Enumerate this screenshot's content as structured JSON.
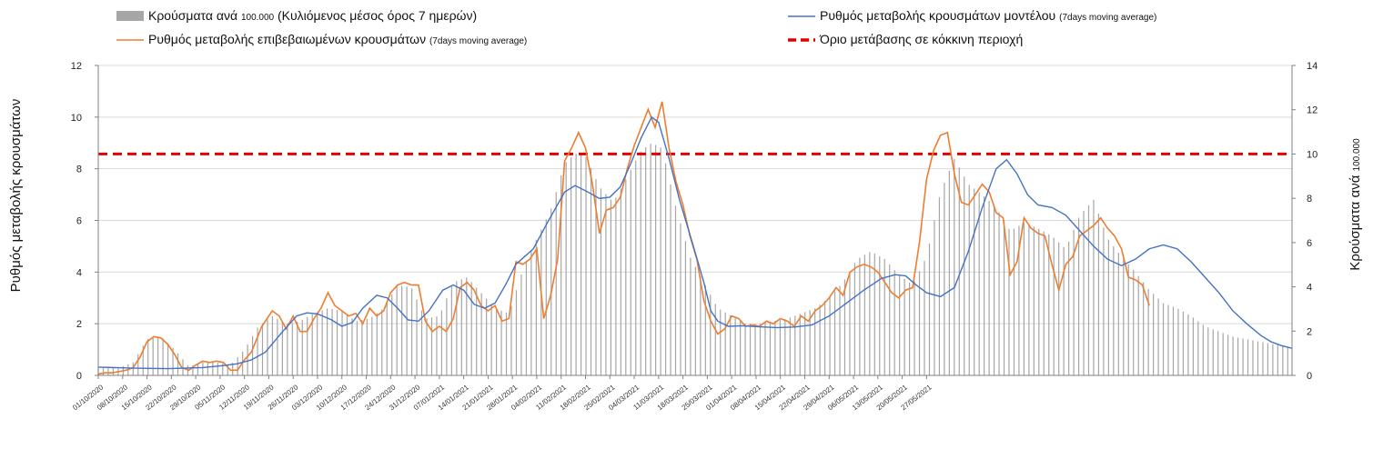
{
  "chart_data": {
    "type": "bar+line",
    "legend": {
      "bars": {
        "label": "Κρούσματα ανά",
        "label_small": "100.000",
        "label_rest": "(Κυλιόμενος μέσος όρος 7 ημερών)"
      },
      "model": {
        "label": "Ρυθμός μεταβολής κρουσμάτων μοντέλου",
        "label_small": "(7days moving average)"
      },
      "confirmed": {
        "label": "Ρυθμός μεταβολής επιβεβαιωμένων κρουσμάτων",
        "label_small": "(7days moving average)"
      },
      "threshold": {
        "label": "Όριο μετάβασης σε κόκκινη περιοχή"
      }
    },
    "ylabel_left": "Ρυθμός μεταβολής κρουσμάτων",
    "ylabel_right": "Κρούσματα ανά",
    "ylabel_right_small": "100.000",
    "ylim_left": [
      0,
      12
    ],
    "ylim_right": [
      0,
      14
    ],
    "yticks_left": [
      "0",
      "2",
      "4",
      "6",
      "8",
      "10",
      "12"
    ],
    "yticks_right": [
      "0",
      "2",
      "4",
      "6",
      "8",
      "10",
      "12",
      "14"
    ],
    "threshold_right_value": 10,
    "n_days": 240,
    "x_tick_labels": [
      "01/10/2020",
      "08/10/2020",
      "15/10/2020",
      "22/10/2020",
      "29/10/2020",
      "05/11/2020",
      "12/11/2020",
      "19/11/2020",
      "26/11/2020",
      "03/12/2020",
      "10/12/2020",
      "17/12/2020",
      "24/12/2020",
      "31/12/2020",
      "07/01/2021",
      "14/01/2021",
      "21/01/2021",
      "28/01/2021",
      "04/02/2021",
      "11/02/2021",
      "18/02/2021",
      "25/02/2021",
      "04/03/2021",
      "11/03/2021",
      "18/03/2021",
      "25/03/2021",
      "01/04/2021",
      "08/04/2021",
      "15/04/2021",
      "22/04/2021",
      "29/04/2021",
      "06/05/2021",
      "13/05/2021",
      "20/05/2021",
      "27/05/2021"
    ],
    "model_keypoints": [
      [
        0,
        0.32
      ],
      [
        10,
        0.28
      ],
      [
        20,
        0.26
      ],
      [
        30,
        0.3
      ],
      [
        36,
        0.38
      ],
      [
        40,
        0.45
      ],
      [
        44,
        0.6
      ],
      [
        48,
        0.9
      ],
      [
        53,
        1.7
      ],
      [
        57,
        2.3
      ],
      [
        60,
        2.42
      ],
      [
        63,
        2.38
      ],
      [
        67,
        2.15
      ],
      [
        70,
        1.9
      ],
      [
        73,
        2.05
      ],
      [
        76,
        2.6
      ],
      [
        80,
        3.1
      ],
      [
        83,
        3.0
      ],
      [
        86,
        2.6
      ],
      [
        89,
        2.15
      ],
      [
        92,
        2.1
      ],
      [
        95,
        2.5
      ],
      [
        99,
        3.3
      ],
      [
        102,
        3.5
      ],
      [
        105,
        3.3
      ],
      [
        108,
        2.75
      ],
      [
        111,
        2.6
      ],
      [
        114,
        2.8
      ],
      [
        117,
        3.5
      ],
      [
        120,
        4.3
      ],
      [
        125,
        4.9
      ],
      [
        129,
        5.9
      ],
      [
        134,
        7.1
      ],
      [
        137,
        7.35
      ],
      [
        140,
        7.15
      ],
      [
        144,
        6.85
      ],
      [
        147,
        6.9
      ],
      [
        150,
        7.3
      ],
      [
        153,
        8.2
      ],
      [
        156,
        9.2
      ],
      [
        159,
        10.0
      ],
      [
        161,
        9.8
      ],
      [
        164,
        8.4
      ],
      [
        167,
        6.8
      ],
      [
        171,
        5.0
      ],
      [
        174,
        3.6
      ],
      [
        176,
        2.5
      ],
      [
        178,
        2.1
      ],
      [
        181,
        1.9
      ],
      [
        185,
        1.92
      ],
      [
        190,
        1.88
      ],
      [
        195,
        1.85
      ],
      [
        200,
        1.87
      ],
      [
        205,
        1.95
      ],
      [
        210,
        2.3
      ],
      [
        215,
        2.8
      ],
      [
        220,
        3.3
      ],
      [
        225,
        3.75
      ],
      [
        229,
        3.9
      ],
      [
        232,
        3.85
      ],
      [
        235,
        3.5
      ],
      [
        238,
        3.2
      ],
      [
        242,
        3.05
      ],
      [
        246,
        3.4
      ],
      [
        250,
        4.8
      ],
      [
        254,
        6.5
      ],
      [
        258,
        8.0
      ],
      [
        261,
        8.35
      ],
      [
        264,
        7.8
      ],
      [
        267,
        7.0
      ],
      [
        270,
        6.6
      ],
      [
        274,
        6.5
      ],
      [
        278,
        6.2
      ],
      [
        282,
        5.6
      ],
      [
        286,
        5.0
      ],
      [
        290,
        4.5
      ],
      [
        294,
        4.25
      ],
      [
        298,
        4.5
      ],
      [
        302,
        4.9
      ],
      [
        306,
        5.05
      ],
      [
        310,
        4.9
      ],
      [
        314,
        4.4
      ],
      [
        318,
        3.8
      ],
      [
        322,
        3.2
      ],
      [
        326,
        2.5
      ],
      [
        330,
        2.0
      ],
      [
        334,
        1.55
      ],
      [
        337,
        1.3
      ],
      [
        340,
        1.15
      ],
      [
        343,
        1.05
      ]
    ],
    "confirmed_keypoints": [
      [
        0,
        0.05
      ],
      [
        2,
        0.1
      ],
      [
        4,
        0.1
      ],
      [
        6,
        0.15
      ],
      [
        8,
        0.2
      ],
      [
        10,
        0.3
      ],
      [
        12,
        0.7
      ],
      [
        14,
        1.3
      ],
      [
        16,
        1.5
      ],
      [
        18,
        1.45
      ],
      [
        20,
        1.2
      ],
      [
        22,
        0.8
      ],
      [
        24,
        0.3
      ],
      [
        26,
        0.2
      ],
      [
        28,
        0.4
      ],
      [
        30,
        0.55
      ],
      [
        32,
        0.5
      ],
      [
        34,
        0.55
      ],
      [
        36,
        0.5
      ],
      [
        38,
        0.2
      ],
      [
        40,
        0.2
      ],
      [
        42,
        0.6
      ],
      [
        44,
        0.9
      ],
      [
        47,
        1.9
      ],
      [
        50,
        2.5
      ],
      [
        52,
        2.3
      ],
      [
        54,
        1.8
      ],
      [
        56,
        2.3
      ],
      [
        58,
        1.7
      ],
      [
        60,
        1.7
      ],
      [
        62,
        2.2
      ],
      [
        64,
        2.6
      ],
      [
        66,
        3.2
      ],
      [
        68,
        2.7
      ],
      [
        70,
        2.5
      ],
      [
        72,
        2.3
      ],
      [
        74,
        2.4
      ],
      [
        76,
        2.0
      ],
      [
        78,
        2.6
      ],
      [
        80,
        2.3
      ],
      [
        82,
        2.5
      ],
      [
        84,
        3.2
      ],
      [
        86,
        3.5
      ],
      [
        88,
        3.6
      ],
      [
        90,
        3.5
      ],
      [
        92,
        3.5
      ],
      [
        94,
        2.1
      ],
      [
        96,
        1.7
      ],
      [
        98,
        1.9
      ],
      [
        100,
        1.7
      ],
      [
        102,
        2.2
      ],
      [
        104,
        3.4
      ],
      [
        106,
        3.6
      ],
      [
        108,
        3.3
      ],
      [
        110,
        2.7
      ],
      [
        112,
        2.5
      ],
      [
        114,
        2.7
      ],
      [
        116,
        2.1
      ],
      [
        118,
        2.2
      ],
      [
        120,
        4.4
      ],
      [
        122,
        4.3
      ],
      [
        124,
        4.5
      ],
      [
        126,
        4.9
      ],
      [
        128,
        2.2
      ],
      [
        130,
        3.1
      ],
      [
        132,
        4.5
      ],
      [
        134,
        8.3
      ],
      [
        136,
        8.8
      ],
      [
        138,
        9.4
      ],
      [
        140,
        8.8
      ],
      [
        142,
        7.4
      ],
      [
        144,
        5.5
      ],
      [
        146,
        6.4
      ],
      [
        148,
        6.5
      ],
      [
        150,
        6.9
      ],
      [
        152,
        8.0
      ],
      [
        154,
        8.9
      ],
      [
        156,
        9.6
      ],
      [
        158,
        10.3
      ],
      [
        160,
        9.6
      ],
      [
        162,
        10.6
      ],
      [
        164,
        8.8
      ],
      [
        166,
        7.5
      ],
      [
        168,
        6.6
      ],
      [
        170,
        5.4
      ],
      [
        172,
        4.5
      ],
      [
        174,
        2.9
      ],
      [
        176,
        2.1
      ],
      [
        178,
        1.6
      ],
      [
        180,
        1.8
      ],
      [
        182,
        2.3
      ],
      [
        184,
        2.2
      ],
      [
        186,
        1.9
      ],
      [
        188,
        1.95
      ],
      [
        190,
        1.9
      ],
      [
        192,
        2.1
      ],
      [
        194,
        2.0
      ],
      [
        196,
        2.2
      ],
      [
        198,
        2.1
      ],
      [
        200,
        1.9
      ],
      [
        202,
        2.3
      ],
      [
        204,
        2.1
      ],
      [
        206,
        2.5
      ],
      [
        208,
        2.7
      ],
      [
        210,
        3.0
      ],
      [
        212,
        3.4
      ],
      [
        214,
        3.1
      ],
      [
        216,
        4.0
      ],
      [
        218,
        4.2
      ],
      [
        220,
        4.3
      ],
      [
        222,
        4.2
      ],
      [
        224,
        4.0
      ],
      [
        226,
        3.6
      ],
      [
        228,
        3.2
      ],
      [
        230,
        3.0
      ],
      [
        232,
        3.3
      ],
      [
        234,
        3.4
      ],
      [
        236,
        5.2
      ],
      [
        238,
        7.6
      ],
      [
        240,
        8.7
      ],
      [
        242,
        9.3
      ],
      [
        244,
        9.4
      ],
      [
        246,
        7.8
      ],
      [
        248,
        6.7
      ],
      [
        250,
        6.6
      ],
      [
        252,
        7.0
      ],
      [
        254,
        7.4
      ],
      [
        256,
        7.1
      ],
      [
        258,
        6.3
      ],
      [
        260,
        6.1
      ],
      [
        262,
        3.9
      ],
      [
        264,
        4.4
      ],
      [
        266,
        6.1
      ],
      [
        268,
        5.7
      ],
      [
        270,
        5.5
      ],
      [
        272,
        5.4
      ],
      [
        274,
        4.3
      ],
      [
        276,
        3.3
      ],
      [
        278,
        4.3
      ],
      [
        280,
        4.6
      ],
      [
        282,
        5.4
      ],
      [
        284,
        5.6
      ],
      [
        286,
        5.8
      ],
      [
        288,
        6.1
      ],
      [
        290,
        5.7
      ],
      [
        292,
        5.4
      ],
      [
        294,
        4.9
      ],
      [
        296,
        3.8
      ],
      [
        298,
        3.7
      ],
      [
        300,
        3.5
      ],
      [
        302,
        2.7
      ]
    ],
    "bar_keypoints": [
      [
        0,
        0.3
      ],
      [
        6,
        0.3
      ],
      [
        10,
        0.5
      ],
      [
        14,
        1.4
      ],
      [
        18,
        1.5
      ],
      [
        22,
        1.0
      ],
      [
        26,
        0.35
      ],
      [
        30,
        0.5
      ],
      [
        34,
        0.5
      ],
      [
        38,
        0.4
      ],
      [
        42,
        1.0
      ],
      [
        46,
        1.9
      ],
      [
        50,
        2.3
      ],
      [
        54,
        2.0
      ],
      [
        58,
        2.1
      ],
      [
        62,
        2.4
      ],
      [
        66,
        2.6
      ],
      [
        70,
        2.5
      ],
      [
        74,
        2.1
      ],
      [
        78,
        2.2
      ],
      [
        82,
        2.6
      ],
      [
        86,
        3.5
      ],
      [
        90,
        3.4
      ],
      [
        94,
        2.2
      ],
      [
        98,
        2.3
      ],
      [
        102,
        3.6
      ],
      [
        106,
        3.8
      ],
      [
        110,
        3.2
      ],
      [
        114,
        2.6
      ],
      [
        118,
        2.4
      ],
      [
        122,
        4.1
      ],
      [
        126,
        5.3
      ],
      [
        130,
        6.4
      ],
      [
        134,
        8.2
      ],
      [
        137,
        8.6
      ],
      [
        140,
        8.5
      ],
      [
        144,
        7.3
      ],
      [
        148,
        6.7
      ],
      [
        152,
        7.7
      ],
      [
        156,
        8.7
      ],
      [
        159,
        9.0
      ],
      [
        162,
        8.8
      ],
      [
        166,
        6.5
      ],
      [
        170,
        4.6
      ],
      [
        174,
        3.6
      ],
      [
        178,
        2.6
      ],
      [
        182,
        2.3
      ],
      [
        186,
        2.0
      ],
      [
        190,
        2.0
      ],
      [
        194,
        2.1
      ],
      [
        198,
        2.2
      ],
      [
        202,
        2.4
      ],
      [
        206,
        2.6
      ],
      [
        210,
        3.0
      ],
      [
        214,
        3.6
      ],
      [
        218,
        4.5
      ],
      [
        222,
        4.8
      ],
      [
        226,
        4.5
      ],
      [
        230,
        3.9
      ],
      [
        234,
        3.5
      ],
      [
        238,
        4.6
      ],
      [
        242,
        7.1
      ],
      [
        246,
        8.4
      ],
      [
        250,
        7.4
      ],
      [
        254,
        7.0
      ],
      [
        258,
        6.5
      ],
      [
        262,
        5.6
      ],
      [
        266,
        5.9
      ],
      [
        270,
        5.7
      ],
      [
        274,
        5.4
      ],
      [
        278,
        4.9
      ],
      [
        282,
        6.2
      ],
      [
        286,
        6.8
      ],
      [
        290,
        5.3
      ],
      [
        294,
        4.6
      ],
      [
        298,
        4.0
      ],
      [
        302,
        3.3
      ],
      [
        306,
        2.8
      ],
      [
        310,
        2.6
      ],
      [
        314,
        2.3
      ],
      [
        318,
        1.9
      ],
      [
        322,
        1.7
      ],
      [
        326,
        1.5
      ],
      [
        330,
        1.4
      ],
      [
        334,
        1.3
      ],
      [
        338,
        1.2
      ],
      [
        342,
        1.1
      ]
    ]
  }
}
